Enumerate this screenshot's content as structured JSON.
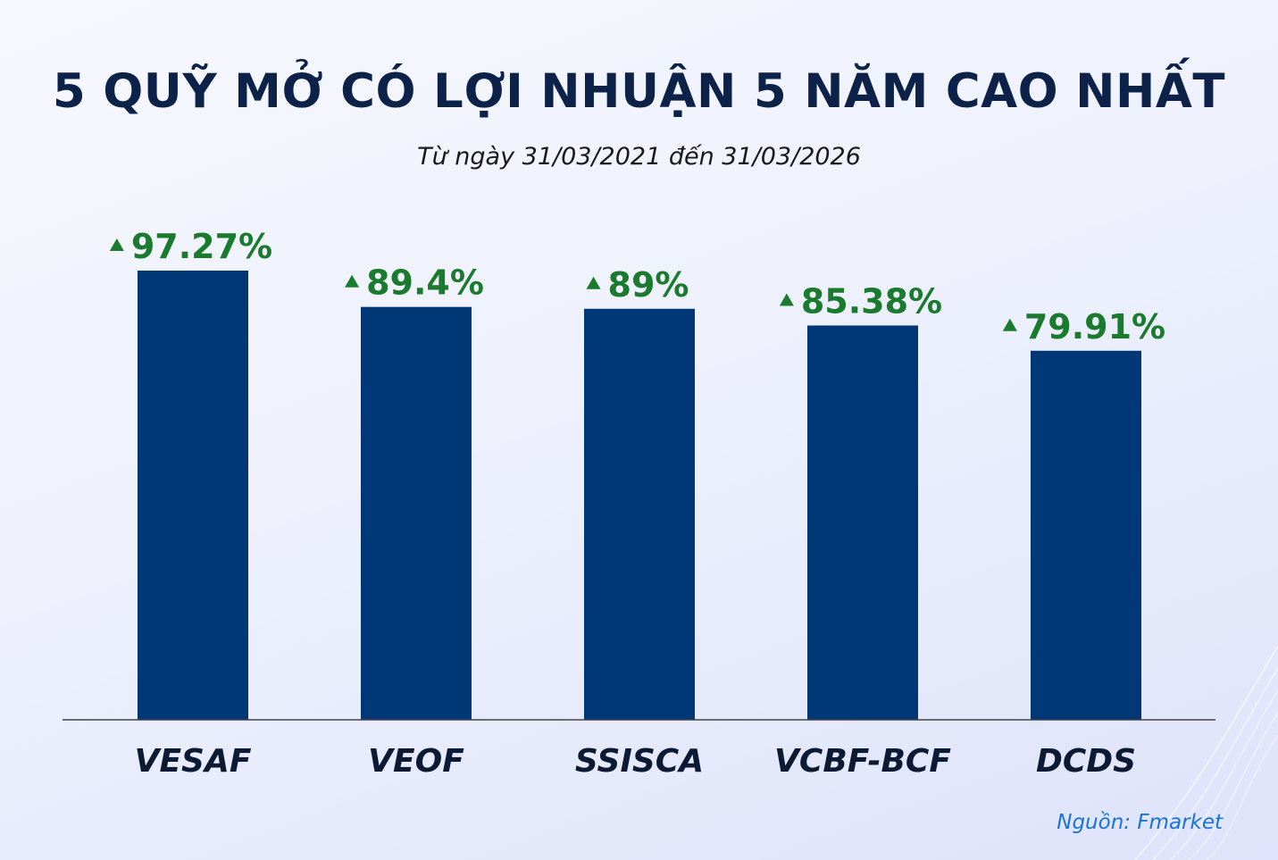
{
  "title": "5 QUỸ MỞ CÓ LỢI NHUẬN 5 NĂM CAO NHẤT",
  "subtitle": "Từ ngày 31/03/2021 đến 31/03/2026",
  "source": "Nguồn: Fmarket",
  "colors": {
    "bar": "#003777",
    "value_label": "#1a7a2e",
    "category_label": "#0d1a33",
    "axis": "#444444"
  },
  "chart_data": {
    "type": "bar",
    "categories": [
      "VESAF",
      "VEOF",
      "SSISCA",
      "VCBF-BCF",
      "DCDS"
    ],
    "values": [
      97.27,
      89.4,
      89,
      85.38,
      79.91
    ],
    "data_labels": [
      "97.27%",
      "89.4%",
      "89%",
      "85.38%",
      "79.91%"
    ],
    "title": "5 QUỸ MỞ CÓ LỢI NHUẬN 5 NĂM CAO NHẤT",
    "subtitle": "Từ ngày 31/03/2021 đến 31/03/2026",
    "xlabel": "",
    "ylabel": "",
    "ylim": [
      0,
      97.27
    ],
    "grid": false,
    "legend": "none"
  }
}
